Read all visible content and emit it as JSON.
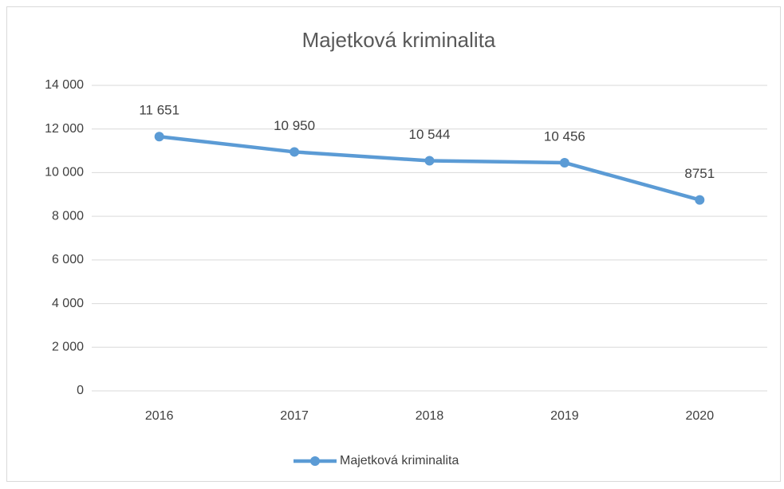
{
  "chart_data": {
    "type": "line",
    "title": "Majetková kriminalita",
    "categories": [
      "2016",
      "2017",
      "2018",
      "2019",
      "2020"
    ],
    "series": [
      {
        "name": "Majetková kriminalita",
        "color": "#5b9bd5",
        "values": [
          11651,
          10950,
          10544,
          10456,
          8751
        ],
        "value_labels": [
          "11 651",
          "10 950",
          "10 544",
          "10 456",
          "8751"
        ]
      }
    ],
    "ylim": [
      0,
      14000
    ],
    "yticks": [
      0,
      {
        "value": 2000,
        "label": "2 000"
      },
      {
        "value": 4000,
        "label": "4 000"
      },
      {
        "value": 6000,
        "label": "6 000"
      },
      {
        "value": 8000,
        "label": "8 000"
      },
      {
        "value": 10000,
        "label": "10 000"
      },
      {
        "value": 12000,
        "label": "12 000"
      },
      {
        "value": 14000,
        "label": "14 000"
      }
    ],
    "grid": true,
    "legend": "bottom"
  }
}
